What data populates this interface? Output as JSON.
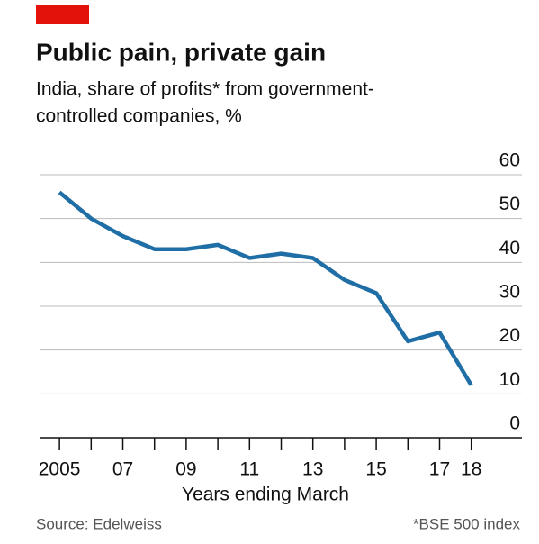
{
  "chart_data": {
    "type": "line",
    "title": "Public pain, private gain",
    "subtitle": [
      "India, share of profits* from government-",
      "controlled companies, %"
    ],
    "x_label": "Years ending March",
    "source": "Source: Edelweiss",
    "footnote": "*BSE 500 index",
    "x": [
      2005,
      2006,
      2007,
      2008,
      2009,
      2010,
      2011,
      2012,
      2013,
      2014,
      2015,
      2016,
      2017,
      2018
    ],
    "series": [
      {
        "name": "Share of profits",
        "color": "#1f6ea6",
        "values": [
          56,
          50,
          46,
          43,
          43,
          44,
          41,
          42,
          41,
          36,
          33,
          22,
          24,
          12
        ]
      }
    ],
    "xlim": [
      2004.4,
      2019.6
    ],
    "xticks": [
      2005,
      {
        "value": 2007,
        "label": "07"
      },
      {
        "value": 2009,
        "label": "09"
      },
      {
        "value": 2011,
        "label": "11"
      },
      {
        "value": 2013,
        "label": "13"
      },
      {
        "value": 2015,
        "label": "15"
      },
      {
        "value": 2017,
        "label": "17"
      },
      {
        "value": 2018,
        "label": "18"
      }
    ],
    "xminorticks": [
      2006,
      2008,
      2010,
      2012,
      2014,
      2016
    ],
    "ylim": [
      0,
      60
    ],
    "yticks": [
      0,
      10,
      20,
      30,
      40,
      50,
      60
    ],
    "grid": true
  }
}
